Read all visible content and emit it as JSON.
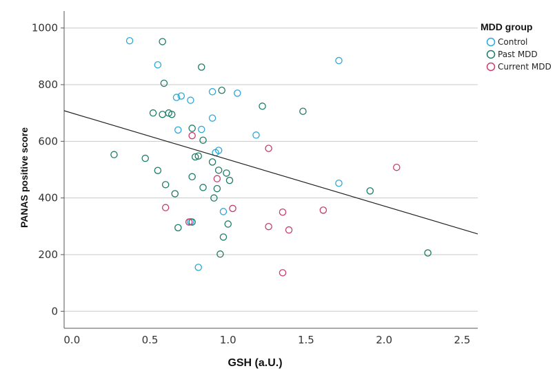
{
  "chart_data": {
    "type": "scatter",
    "title": "",
    "xlabel": "GSH (a.U.)",
    "ylabel": "PANAS positive score",
    "xlim": [
      -0.05,
      2.6
    ],
    "ylim": [
      -60,
      1060
    ],
    "x_ticks": [
      0.0,
      0.5,
      1.0,
      1.5,
      2.0,
      2.5
    ],
    "x_tick_labels": [
      "0.0",
      "0.5",
      "1.0",
      "1.5",
      "2.0",
      "2.5"
    ],
    "y_ticks": [
      0,
      200,
      400,
      600,
      800,
      1000
    ],
    "y_tick_labels": [
      "0",
      "200",
      "400",
      "600",
      "800",
      "1000"
    ],
    "grid": "horizontal",
    "legend": {
      "title": "MDD group",
      "position": "top-right"
    },
    "series": [
      {
        "name": "Control",
        "color": "#29a8d8",
        "points": [
          [
            0.37,
            955
          ],
          [
            0.55,
            870
          ],
          [
            0.67,
            755
          ],
          [
            0.7,
            760
          ],
          [
            0.76,
            745
          ],
          [
            0.68,
            640
          ],
          [
            0.83,
            642
          ],
          [
            0.9,
            775
          ],
          [
            0.9,
            682
          ],
          [
            1.06,
            770
          ],
          [
            1.18,
            622
          ],
          [
            0.92,
            560
          ],
          [
            0.94,
            568
          ],
          [
            0.97,
            352
          ],
          [
            0.76,
            316
          ],
          [
            0.81,
            155
          ],
          [
            1.71,
            885
          ],
          [
            1.71,
            452
          ]
        ]
      },
      {
        "name": "Past MDD",
        "color": "#1c7a66",
        "points": [
          [
            0.58,
            952
          ],
          [
            0.59,
            805
          ],
          [
            0.83,
            862
          ],
          [
            0.52,
            700
          ],
          [
            0.58,
            695
          ],
          [
            0.62,
            700
          ],
          [
            0.64,
            695
          ],
          [
            0.96,
            780
          ],
          [
            1.22,
            724
          ],
          [
            1.48,
            706
          ],
          [
            0.77,
            646
          ],
          [
            0.84,
            604
          ],
          [
            0.27,
            553
          ],
          [
            0.47,
            540
          ],
          [
            0.55,
            497
          ],
          [
            0.79,
            545
          ],
          [
            0.81,
            548
          ],
          [
            0.9,
            527
          ],
          [
            0.94,
            498
          ],
          [
            0.99,
            488
          ],
          [
            1.01,
            462
          ],
          [
            0.6,
            447
          ],
          [
            0.66,
            415
          ],
          [
            0.77,
            475
          ],
          [
            0.84,
            437
          ],
          [
            0.91,
            400
          ],
          [
            0.93,
            433
          ],
          [
            0.68,
            295
          ],
          [
            0.77,
            315
          ],
          [
            1.0,
            308
          ],
          [
            0.97,
            262
          ],
          [
            0.95,
            202
          ],
          [
            1.91,
            425
          ],
          [
            2.28,
            206
          ]
        ]
      },
      {
        "name": "Current MDD",
        "color": "#c93a6a",
        "points": [
          [
            0.6,
            366
          ],
          [
            0.75,
            315
          ],
          [
            0.77,
            620
          ],
          [
            0.93,
            468
          ],
          [
            1.03,
            363
          ],
          [
            1.26,
            575
          ],
          [
            1.26,
            299
          ],
          [
            1.35,
            350
          ],
          [
            1.39,
            287
          ],
          [
            1.61,
            357
          ],
          [
            1.35,
            136
          ],
          [
            2.08,
            508
          ]
        ]
      }
    ],
    "fit_line": {
      "type": "linear",
      "color": "#222222",
      "x": [
        -0.05,
        2.6
      ],
      "y": [
        708,
        273
      ]
    }
  }
}
